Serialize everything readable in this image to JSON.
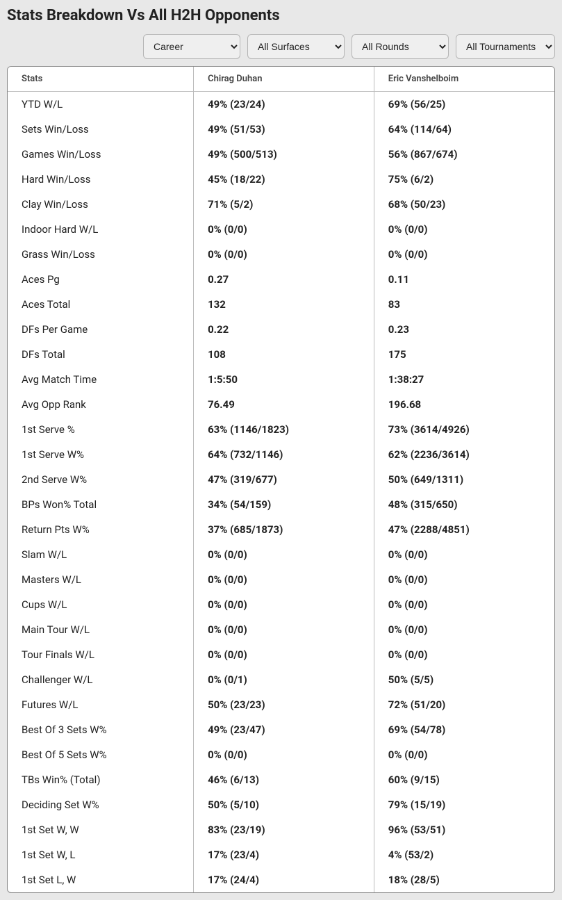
{
  "title": "Stats Breakdown Vs All H2H Opponents",
  "filters": {
    "period": {
      "selected": "Career",
      "options": [
        "Career"
      ]
    },
    "surface": {
      "selected": "All Surfaces",
      "options": [
        "All Surfaces"
      ]
    },
    "round": {
      "selected": "All Rounds",
      "options": [
        "All Rounds"
      ]
    },
    "tournament": {
      "selected": "All Tournaments",
      "options": [
        "All Tournaments"
      ]
    }
  },
  "columns": {
    "stats": "Stats",
    "player1": "Chirag Duhan",
    "player2": "Eric Vanshelboim"
  },
  "rows": [
    {
      "label": "YTD W/L",
      "p1": "49% (23/24)",
      "p2": "69% (56/25)"
    },
    {
      "label": "Sets Win/Loss",
      "p1": "49% (51/53)",
      "p2": "64% (114/64)"
    },
    {
      "label": "Games Win/Loss",
      "p1": "49% (500/513)",
      "p2": "56% (867/674)"
    },
    {
      "label": "Hard Win/Loss",
      "p1": "45% (18/22)",
      "p2": "75% (6/2)"
    },
    {
      "label": "Clay Win/Loss",
      "p1": "71% (5/2)",
      "p2": "68% (50/23)"
    },
    {
      "label": "Indoor Hard W/L",
      "p1": "0% (0/0)",
      "p2": "0% (0/0)"
    },
    {
      "label": "Grass Win/Loss",
      "p1": "0% (0/0)",
      "p2": "0% (0/0)"
    },
    {
      "label": "Aces Pg",
      "p1": "0.27",
      "p2": "0.11"
    },
    {
      "label": "Aces Total",
      "p1": "132",
      "p2": "83"
    },
    {
      "label": "DFs Per Game",
      "p1": "0.22",
      "p2": "0.23"
    },
    {
      "label": "DFs Total",
      "p1": "108",
      "p2": "175"
    },
    {
      "label": "Avg Match Time",
      "p1": "1:5:50",
      "p2": "1:38:27"
    },
    {
      "label": "Avg Opp Rank",
      "p1": "76.49",
      "p2": "196.68"
    },
    {
      "label": "1st Serve %",
      "p1": "63% (1146/1823)",
      "p2": "73% (3614/4926)"
    },
    {
      "label": "1st Serve W%",
      "p1": "64% (732/1146)",
      "p2": "62% (2236/3614)"
    },
    {
      "label": "2nd Serve W%",
      "p1": "47% (319/677)",
      "p2": "50% (649/1311)"
    },
    {
      "label": "BPs Won% Total",
      "p1": "34% (54/159)",
      "p2": "48% (315/650)"
    },
    {
      "label": "Return Pts W%",
      "p1": "37% (685/1873)",
      "p2": "47% (2288/4851)"
    },
    {
      "label": "Slam W/L",
      "p1": "0% (0/0)",
      "p2": "0% (0/0)"
    },
    {
      "label": "Masters W/L",
      "p1": "0% (0/0)",
      "p2": "0% (0/0)"
    },
    {
      "label": "Cups W/L",
      "p1": "0% (0/0)",
      "p2": "0% (0/0)"
    },
    {
      "label": "Main Tour W/L",
      "p1": "0% (0/0)",
      "p2": "0% (0/0)"
    },
    {
      "label": "Tour Finals W/L",
      "p1": "0% (0/0)",
      "p2": "0% (0/0)"
    },
    {
      "label": "Challenger W/L",
      "p1": "0% (0/1)",
      "p2": "50% (5/5)"
    },
    {
      "label": "Futures W/L",
      "p1": "50% (23/23)",
      "p2": "72% (51/20)"
    },
    {
      "label": "Best Of 3 Sets W%",
      "p1": "49% (23/47)",
      "p2": "69% (54/78)"
    },
    {
      "label": "Best Of 5 Sets W%",
      "p1": "0% (0/0)",
      "p2": "0% (0/0)"
    },
    {
      "label": "TBs Win% (Total)",
      "p1": "46% (6/13)",
      "p2": "60% (9/15)"
    },
    {
      "label": "Deciding Set W%",
      "p1": "50% (5/10)",
      "p2": "79% (15/19)"
    },
    {
      "label": "1st Set W, W",
      "p1": "83% (23/19)",
      "p2": "96% (53/51)"
    },
    {
      "label": "1st Set W, L",
      "p1": "17% (23/4)",
      "p2": "4% (53/2)"
    },
    {
      "label": "1st Set L, W",
      "p1": "17% (24/4)",
      "p2": "18% (28/5)"
    }
  ]
}
